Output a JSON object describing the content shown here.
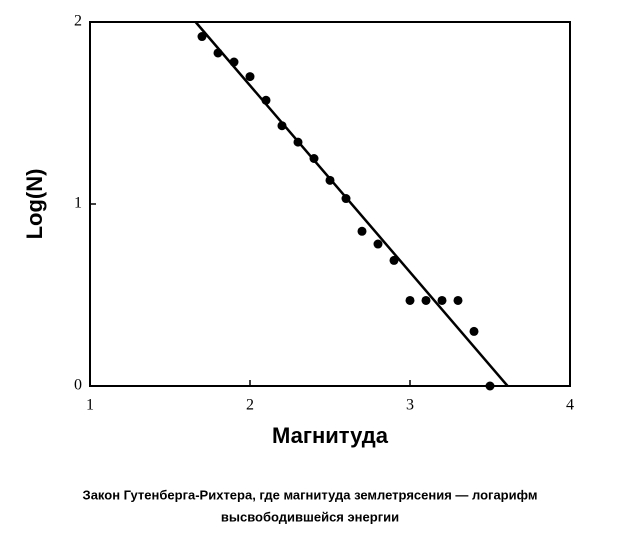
{
  "chart_data": {
    "type": "scatter",
    "x": [
      1.7,
      1.8,
      1.9,
      2.0,
      2.1,
      2.2,
      2.3,
      2.4,
      2.5,
      2.6,
      2.7,
      2.8,
      2.9,
      3.0,
      3.1,
      3.2,
      3.3,
      3.4,
      3.5
    ],
    "values": [
      1.92,
      1.83,
      1.78,
      1.7,
      1.57,
      1.43,
      1.34,
      1.25,
      1.13,
      1.03,
      0.85,
      0.78,
      0.69,
      0.47,
      0.47,
      0.47,
      0.47,
      0.3,
      0
    ],
    "color": "#000000",
    "fit_line": {
      "x": [
        1.66,
        3.61
      ],
      "y": [
        2,
        0
      ]
    },
    "xlim": [
      1,
      4
    ],
    "xticks": [
      1,
      2,
      3,
      4
    ],
    "ylim": [
      0,
      2
    ],
    "yticks": [
      0,
      1,
      2
    ],
    "xlabel": "Магнитуда",
    "ylabel": "Log(N)",
    "caption": [
      "Закон Гутенберга-Рихтера, где магнитуда землетрясения — логарифм",
      "высвободившейся энергии"
    ]
  }
}
